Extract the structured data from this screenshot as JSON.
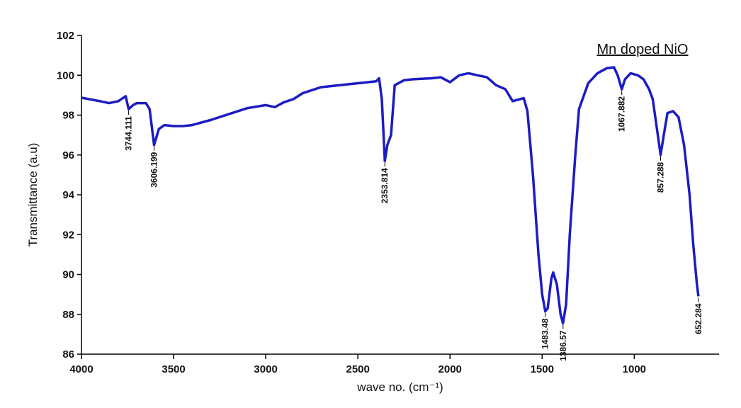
{
  "chart_data": {
    "type": "line",
    "title": "Mn doped NiO",
    "x_label": "wave no. (cm⁻¹)",
    "y_label": "Transmittance (a.u)",
    "xlim": [
      4000,
      540
    ],
    "ylim": [
      86,
      102
    ],
    "x_reversed": true,
    "xticks": [
      4000,
      3500,
      3000,
      2500,
      2000,
      1500,
      1000
    ],
    "yticks": [
      86,
      88,
      90,
      92,
      94,
      96,
      98,
      100,
      102
    ],
    "series": [
      {
        "name": "Mn doped NiO",
        "color": "#1c1cc4",
        "x": [
          4000,
          3900,
          3850,
          3800,
          3760,
          3744,
          3720,
          3700,
          3650,
          3630,
          3606,
          3580,
          3550,
          3500,
          3450,
          3400,
          3300,
          3200,
          3100,
          3000,
          2950,
          2900,
          2850,
          2800,
          2700,
          2600,
          2500,
          2400,
          2385,
          2370,
          2354,
          2340,
          2320,
          2300,
          2250,
          2200,
          2100,
          2050,
          2000,
          1950,
          1900,
          1850,
          1800,
          1750,
          1700,
          1660,
          1620,
          1600,
          1580,
          1550,
          1520,
          1500,
          1483,
          1470,
          1450,
          1440,
          1420,
          1400,
          1387,
          1370,
          1350,
          1320,
          1300,
          1250,
          1200,
          1150,
          1110,
          1090,
          1068,
          1050,
          1020,
          980,
          950,
          920,
          900,
          880,
          857,
          840,
          820,
          790,
          760,
          730,
          700,
          680,
          660,
          652
        ],
        "values": [
          98.87,
          98.7,
          98.6,
          98.7,
          98.95,
          98.3,
          98.5,
          98.6,
          98.6,
          98.3,
          96.5,
          97.3,
          97.5,
          97.45,
          97.45,
          97.5,
          97.75,
          98.05,
          98.35,
          98.5,
          98.4,
          98.65,
          98.8,
          99.1,
          99.4,
          99.5,
          99.6,
          99.7,
          99.85,
          98.8,
          95.7,
          96.5,
          97.0,
          99.5,
          99.75,
          99.8,
          99.85,
          99.9,
          99.65,
          100.0,
          100.1,
          100.0,
          99.9,
          99.5,
          99.3,
          98.7,
          98.8,
          98.85,
          98.2,
          95.0,
          91.0,
          89.0,
          88.15,
          88.3,
          89.8,
          90.1,
          89.5,
          88.0,
          87.55,
          88.5,
          92.0,
          96.0,
          98.3,
          99.6,
          100.1,
          100.35,
          100.4,
          100.0,
          99.3,
          99.8,
          100.1,
          100.0,
          99.8,
          99.3,
          98.8,
          97.5,
          96.0,
          97.0,
          98.1,
          98.2,
          97.9,
          96.5,
          94.0,
          91.5,
          89.5,
          88.9
        ]
      }
    ],
    "annotations": [
      {
        "x": 3744.111,
        "y": 98.3
      },
      {
        "x": 3606.199,
        "y": 96.5
      },
      {
        "x": 2353.814,
        "y": 95.7
      },
      {
        "x": 1483.48,
        "y": 88.15
      },
      {
        "x": 1386.57,
        "y": 87.55
      },
      {
        "x": 1067.882,
        "y": 99.3
      },
      {
        "x": 857.288,
        "y": 96.0
      },
      {
        "x": 652.284,
        "y": 88.9
      }
    ]
  }
}
